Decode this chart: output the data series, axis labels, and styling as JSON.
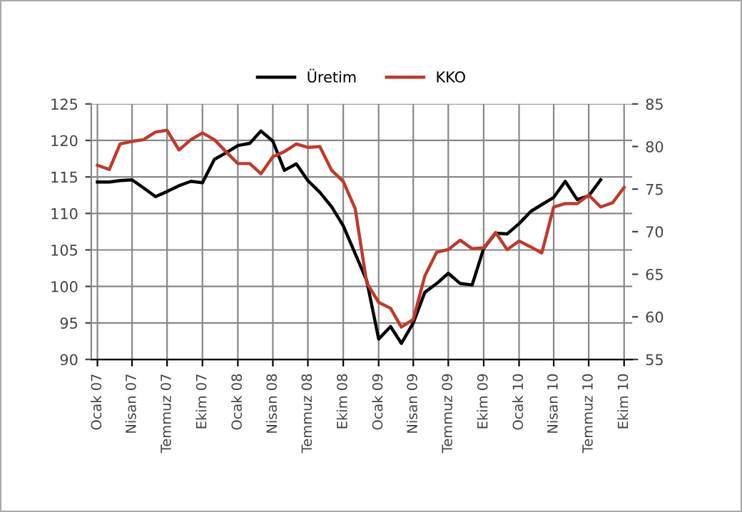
{
  "chart_data": {
    "type": "line",
    "x": [
      "2007-01",
      "2007-02",
      "2007-03",
      "2007-04",
      "2007-05",
      "2007-06",
      "2007-07",
      "2007-08",
      "2007-09",
      "2007-10",
      "2007-11",
      "2007-12",
      "2008-01",
      "2008-02",
      "2008-03",
      "2008-04",
      "2008-05",
      "2008-06",
      "2008-07",
      "2008-08",
      "2008-09",
      "2008-10",
      "2008-11",
      "2008-12",
      "2009-01",
      "2009-02",
      "2009-03",
      "2009-04",
      "2009-05",
      "2009-06",
      "2009-07",
      "2009-08",
      "2009-09",
      "2009-10",
      "2009-11",
      "2009-12",
      "2010-01",
      "2010-02",
      "2010-03",
      "2010-04",
      "2010-05",
      "2010-06",
      "2010-07",
      "2010-08",
      "2010-09",
      "2010-10"
    ],
    "series": [
      {
        "name": "Üretim",
        "color": "#000000",
        "axis": "y",
        "values": [
          114.3,
          114.3,
          114.5,
          114.6,
          113.5,
          112.3,
          113.0,
          113.8,
          114.4,
          114.2,
          117.4,
          118.3,
          119.3,
          119.6,
          121.3,
          119.9,
          115.9,
          116.8,
          114.5,
          112.9,
          110.9,
          108.3,
          104.5,
          100.8,
          92.8,
          94.5,
          92.2,
          95.0,
          99.2,
          100.4,
          101.8,
          100.4,
          100.2,
          105.2,
          107.3,
          107.2,
          108.6,
          110.3,
          111.2,
          112.2,
          114.4,
          111.9,
          112.4,
          114.6,
          null,
          null
        ]
      },
      {
        "name": "KKO",
        "color": "#c0392b",
        "axis": "y2",
        "values": [
          77.8,
          77.3,
          80.3,
          80.6,
          80.8,
          81.7,
          81.9,
          79.6,
          80.8,
          81.6,
          80.8,
          79.4,
          78.0,
          78.0,
          76.8,
          78.8,
          79.4,
          80.3,
          79.9,
          80.0,
          77.2,
          75.9,
          72.7,
          64.0,
          61.7,
          61.0,
          58.8,
          59.7,
          64.8,
          67.6,
          67.9,
          69.0,
          68.0,
          68.1,
          69.9,
          67.9,
          68.9,
          68.2,
          67.5,
          72.9,
          73.3,
          73.3,
          74.3,
          72.9,
          73.4,
          75.2
        ]
      }
    ],
    "xlim": [
      "2006-12-16",
      "2010-10-22"
    ],
    "xticks": [
      {
        "value": "2007-01",
        "label": "Ocak 07"
      },
      {
        "value": "2007-04",
        "label": "Nisan 07"
      },
      {
        "value": "2007-07",
        "label": "Temmuz 07"
      },
      {
        "value": "2007-10",
        "label": "Ekim 07"
      },
      {
        "value": "2008-01",
        "label": "Ocak 08"
      },
      {
        "value": "2008-04",
        "label": "Nisan 08"
      },
      {
        "value": "2008-07",
        "label": "Temmuz 08"
      },
      {
        "value": "2008-10",
        "label": "Ekim 08"
      },
      {
        "value": "2009-01",
        "label": "Ocak 09"
      },
      {
        "value": "2009-04",
        "label": "Nisan 09"
      },
      {
        "value": "2009-07",
        "label": "Temmuz 09"
      },
      {
        "value": "2009-10",
        "label": "Ekim 09"
      },
      {
        "value": "2010-01",
        "label": "Ocak 10"
      },
      {
        "value": "2010-04",
        "label": "Nisan 10"
      },
      {
        "value": "2010-07",
        "label": "Temmuz 10"
      },
      {
        "value": "2010-10",
        "label": "Ekim 10"
      }
    ],
    "ylim": [
      90,
      125
    ],
    "yticks": [
      90,
      95,
      100,
      105,
      110,
      115,
      120,
      125
    ],
    "y2lim": [
      55,
      85
    ],
    "y2ticks": [
      55,
      60,
      65,
      70,
      75,
      80,
      85
    ],
    "grid": true,
    "legend": "top",
    "marker": "none",
    "line_style": "solid"
  }
}
